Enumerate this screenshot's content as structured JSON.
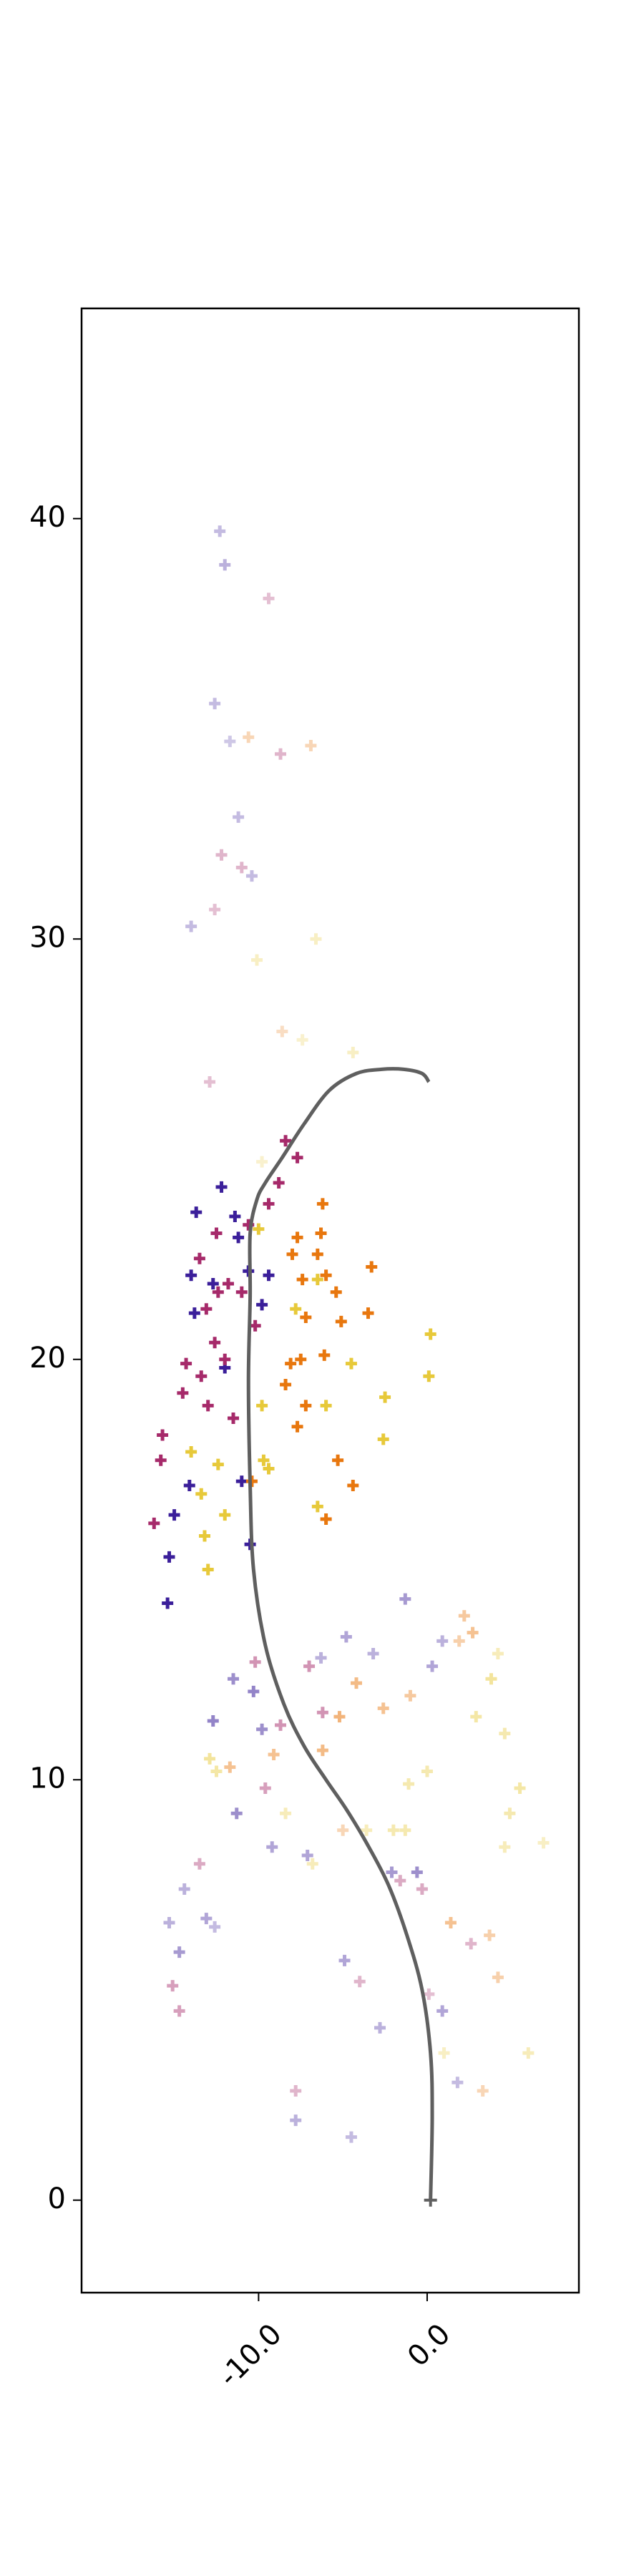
{
  "chart_data": {
    "type": "scatter",
    "title": "",
    "xlabel": "",
    "ylabel": "",
    "xlim": [
      -20.5,
      9.0
    ],
    "ylim": [
      -2.2,
      45.0
    ],
    "grid": false,
    "legend": "none",
    "x_ticks": [
      -10.0,
      0.0
    ],
    "x_tick_labels": [
      "-10.0",
      "0.0"
    ],
    "y_ticks": [
      0,
      10,
      20,
      30,
      40
    ],
    "y_tick_labels": [
      "0",
      "10",
      "20",
      "30",
      "40"
    ],
    "marker": "+",
    "colors": {
      "purple": "#3b1f9a",
      "magenta": "#a62a6a",
      "orange": "#e8770e",
      "yellow": "#e7c93a",
      "line": "#5f5f5f",
      "axis": "#000000"
    },
    "trajectory": {
      "x": [
        0.2,
        0.3,
        0.2,
        -0.3,
        -1.2,
        -2.3,
        -3.6,
        -4.8,
        -6.0,
        -7.3,
        -8.5,
        -9.6,
        -10.3,
        -10.5,
        -10.6,
        -10.5,
        -10.5,
        -10.1,
        -9.6,
        -8.6,
        -7.3,
        -5.8,
        -4.2,
        -2.7,
        -1.4,
        -0.3,
        0.1
      ],
      "y": [
        0.0,
        2.0,
        3.5,
        5.0,
        6.3,
        7.5,
        8.5,
        9.3,
        10.0,
        10.8,
        11.8,
        13.2,
        15.0,
        17.0,
        19.5,
        21.5,
        23.0,
        23.8,
        24.2,
        24.8,
        25.6,
        26.4,
        26.8,
        26.9,
        26.9,
        26.8,
        26.6
      ]
    },
    "series": [
      {
        "color": "purple",
        "points": [
          {
            "x": -11.4,
            "y": 23.4,
            "a": 1.0
          },
          {
            "x": -13.7,
            "y": 23.5,
            "a": 1.0
          },
          {
            "x": -14.0,
            "y": 22.0,
            "a": 1.0
          },
          {
            "x": -12.7,
            "y": 21.8,
            "a": 1.0
          },
          {
            "x": -11.2,
            "y": 22.9,
            "a": 1.0
          },
          {
            "x": -10.6,
            "y": 22.1,
            "a": 1.0
          },
          {
            "x": -13.8,
            "y": 21.1,
            "a": 1.0
          },
          {
            "x": -12.0,
            "y": 19.8,
            "a": 1.0
          },
          {
            "x": -11.0,
            "y": 17.1,
            "a": 1.0
          },
          {
            "x": -14.1,
            "y": 17.0,
            "a": 1.0
          },
          {
            "x": -10.5,
            "y": 15.6,
            "a": 1.0
          },
          {
            "x": -15.0,
            "y": 16.3,
            "a": 1.0
          },
          {
            "x": -15.3,
            "y": 15.3,
            "a": 1.0
          },
          {
            "x": -15.4,
            "y": 14.2,
            "a": 1.0
          },
          {
            "x": -12.2,
            "y": 24.1,
            "a": 1.0
          },
          {
            "x": -9.4,
            "y": 22.0,
            "a": 1.0
          },
          {
            "x": -9.8,
            "y": 21.3,
            "a": 1.0
          },
          {
            "x": -1.3,
            "y": 14.3,
            "a": 0.45
          },
          {
            "x": -4.8,
            "y": 13.4,
            "a": 0.4
          },
          {
            "x": -6.3,
            "y": 12.9,
            "a": 0.35
          },
          {
            "x": -10.3,
            "y": 12.1,
            "a": 0.55
          },
          {
            "x": -11.5,
            "y": 12.4,
            "a": 0.5
          },
          {
            "x": -12.7,
            "y": 11.4,
            "a": 0.55
          },
          {
            "x": -9.8,
            "y": 11.2,
            "a": 0.5
          },
          {
            "x": -11.3,
            "y": 9.2,
            "a": 0.5
          },
          {
            "x": -9.2,
            "y": 8.4,
            "a": 0.4
          },
          {
            "x": -7.1,
            "y": 8.2,
            "a": 0.4
          },
          {
            "x": -15.3,
            "y": 6.6,
            "a": 0.35
          },
          {
            "x": -14.4,
            "y": 7.4,
            "a": 0.35
          },
          {
            "x": -13.1,
            "y": 6.7,
            "a": 0.4
          },
          {
            "x": -14.7,
            "y": 5.9,
            "a": 0.45
          },
          {
            "x": -12.6,
            "y": 6.5,
            "a": 0.3
          },
          {
            "x": -2.1,
            "y": 7.8,
            "a": 0.45
          },
          {
            "x": -0.6,
            "y": 7.8,
            "a": 0.5
          },
          {
            "x": -4.9,
            "y": 5.7,
            "a": 0.4
          },
          {
            "x": -2.8,
            "y": 4.1,
            "a": 0.35
          },
          {
            "x": 0.9,
            "y": 4.5,
            "a": 0.4
          },
          {
            "x": 1.8,
            "y": 2.8,
            "a": 0.3
          },
          {
            "x": -7.8,
            "y": 1.9,
            "a": 0.35
          },
          {
            "x": -4.5,
            "y": 1.5,
            "a": 0.3
          },
          {
            "x": -12.3,
            "y": 39.7,
            "a": 0.3
          },
          {
            "x": -12.0,
            "y": 38.9,
            "a": 0.35
          },
          {
            "x": -12.6,
            "y": 35.6,
            "a": 0.3
          },
          {
            "x": -11.2,
            "y": 32.9,
            "a": 0.3
          },
          {
            "x": -10.4,
            "y": 31.5,
            "a": 0.3
          },
          {
            "x": -14.0,
            "y": 30.3,
            "a": 0.3
          },
          {
            "x": -11.7,
            "y": 34.7,
            "a": 0.25
          },
          {
            "x": 0.3,
            "y": 12.7,
            "a": 0.4
          },
          {
            "x": -3.2,
            "y": 13.0,
            "a": 0.35
          },
          {
            "x": 0.9,
            "y": 13.3,
            "a": 0.35
          }
        ]
      },
      {
        "color": "magenta",
        "points": [
          {
            "x": -8.4,
            "y": 25.2,
            "a": 1.0
          },
          {
            "x": -7.7,
            "y": 24.8,
            "a": 1.0
          },
          {
            "x": -12.5,
            "y": 23.0,
            "a": 1.0
          },
          {
            "x": -13.5,
            "y": 22.4,
            "a": 1.0
          },
          {
            "x": -11.8,
            "y": 21.8,
            "a": 1.0
          },
          {
            "x": -12.4,
            "y": 21.6,
            "a": 1.0
          },
          {
            "x": -11.0,
            "y": 21.6,
            "a": 1.0
          },
          {
            "x": -10.2,
            "y": 20.8,
            "a": 1.0
          },
          {
            "x": -13.1,
            "y": 21.2,
            "a": 1.0
          },
          {
            "x": -12.6,
            "y": 20.4,
            "a": 1.0
          },
          {
            "x": -14.3,
            "y": 19.9,
            "a": 1.0
          },
          {
            "x": -13.4,
            "y": 19.6,
            "a": 1.0
          },
          {
            "x": -11.5,
            "y": 18.6,
            "a": 1.0
          },
          {
            "x": -15.7,
            "y": 18.2,
            "a": 1.0
          },
          {
            "x": -15.8,
            "y": 17.6,
            "a": 1.0
          },
          {
            "x": -13.0,
            "y": 18.9,
            "a": 1.0
          },
          {
            "x": -16.2,
            "y": 16.1,
            "a": 1.0
          },
          {
            "x": -10.6,
            "y": 23.2,
            "a": 1.0
          },
          {
            "x": -9.4,
            "y": 23.7,
            "a": 1.0
          },
          {
            "x": -8.8,
            "y": 24.2,
            "a": 1.0
          },
          {
            "x": -14.5,
            "y": 19.2,
            "a": 1.0
          },
          {
            "x": -12.0,
            "y": 20.0,
            "a": 1.0
          },
          {
            "x": -7.0,
            "y": 12.7,
            "a": 0.5
          },
          {
            "x": -8.7,
            "y": 11.3,
            "a": 0.5
          },
          {
            "x": -6.2,
            "y": 11.6,
            "a": 0.5
          },
          {
            "x": -10.2,
            "y": 12.8,
            "a": 0.5
          },
          {
            "x": -13.5,
            "y": 8.0,
            "a": 0.4
          },
          {
            "x": -14.7,
            "y": 4.5,
            "a": 0.45
          },
          {
            "x": -15.1,
            "y": 5.1,
            "a": 0.45
          },
          {
            "x": -9.4,
            "y": 38.1,
            "a": 0.3
          },
          {
            "x": -8.7,
            "y": 34.4,
            "a": 0.35
          },
          {
            "x": -12.2,
            "y": 32.0,
            "a": 0.35
          },
          {
            "x": -11.0,
            "y": 31.7,
            "a": 0.35
          },
          {
            "x": -12.6,
            "y": 30.7,
            "a": 0.3
          },
          {
            "x": -12.9,
            "y": 26.6,
            "a": 0.3
          },
          {
            "x": -7.8,
            "y": 2.6,
            "a": 0.35
          },
          {
            "x": -1.6,
            "y": 7.6,
            "a": 0.4
          },
          {
            "x": -0.3,
            "y": 7.4,
            "a": 0.4
          },
          {
            "x": 2.6,
            "y": 6.1,
            "a": 0.35
          },
          {
            "x": -4.0,
            "y": 5.2,
            "a": 0.35
          },
          {
            "x": 0.1,
            "y": 4.9,
            "a": 0.3
          },
          {
            "x": -9.6,
            "y": 9.8,
            "a": 0.45
          }
        ]
      },
      {
        "color": "orange",
        "points": [
          {
            "x": -6.2,
            "y": 23.7,
            "a": 1.0
          },
          {
            "x": -6.3,
            "y": 23.0,
            "a": 1.0
          },
          {
            "x": -6.5,
            "y": 22.5,
            "a": 1.0
          },
          {
            "x": -7.7,
            "y": 22.9,
            "a": 1.0
          },
          {
            "x": -6.0,
            "y": 22.0,
            "a": 1.0
          },
          {
            "x": -5.4,
            "y": 21.6,
            "a": 1.0
          },
          {
            "x": -3.3,
            "y": 22.2,
            "a": 1.0
          },
          {
            "x": -7.2,
            "y": 21.0,
            "a": 1.0
          },
          {
            "x": -5.1,
            "y": 20.9,
            "a": 1.0
          },
          {
            "x": -3.5,
            "y": 21.1,
            "a": 1.0
          },
          {
            "x": -7.5,
            "y": 20.0,
            "a": 1.0
          },
          {
            "x": -8.1,
            "y": 19.9,
            "a": 1.0
          },
          {
            "x": -6.1,
            "y": 20.1,
            "a": 1.0
          },
          {
            "x": -8.4,
            "y": 19.4,
            "a": 1.0
          },
          {
            "x": -7.2,
            "y": 18.9,
            "a": 1.0
          },
          {
            "x": -7.7,
            "y": 18.4,
            "a": 1.0
          },
          {
            "x": -5.3,
            "y": 17.6,
            "a": 1.0
          },
          {
            "x": -10.4,
            "y": 17.1,
            "a": 1.0
          },
          {
            "x": -6.0,
            "y": 16.2,
            "a": 1.0
          },
          {
            "x": -4.4,
            "y": 17.0,
            "a": 1.0
          },
          {
            "x": -8.0,
            "y": 22.5,
            "a": 1.0
          },
          {
            "x": -7.4,
            "y": 21.9,
            "a": 1.0
          },
          {
            "x": -5.2,
            "y": 11.5,
            "a": 0.55
          },
          {
            "x": -4.2,
            "y": 12.3,
            "a": 0.5
          },
          {
            "x": -6.2,
            "y": 10.7,
            "a": 0.5
          },
          {
            "x": -2.6,
            "y": 11.7,
            "a": 0.45
          },
          {
            "x": -1.0,
            "y": 12.0,
            "a": 0.4
          },
          {
            "x": 1.9,
            "y": 13.3,
            "a": 0.35
          },
          {
            "x": 2.7,
            "y": 13.5,
            "a": 0.45
          },
          {
            "x": 2.2,
            "y": 13.9,
            "a": 0.4
          },
          {
            "x": 1.4,
            "y": 6.6,
            "a": 0.45
          },
          {
            "x": 3.7,
            "y": 6.3,
            "a": 0.35
          },
          {
            "x": 4.2,
            "y": 5.3,
            "a": 0.35
          },
          {
            "x": -10.6,
            "y": 34.8,
            "a": 0.3
          },
          {
            "x": -6.9,
            "y": 34.6,
            "a": 0.3
          },
          {
            "x": -8.6,
            "y": 27.8,
            "a": 0.25
          },
          {
            "x": -5.0,
            "y": 8.8,
            "a": 0.3
          },
          {
            "x": 3.3,
            "y": 2.6,
            "a": 0.3
          },
          {
            "x": -9.1,
            "y": 10.6,
            "a": 0.45
          },
          {
            "x": -11.7,
            "y": 10.3,
            "a": 0.45
          }
        ]
      },
      {
        "color": "yellow",
        "points": [
          {
            "x": 0.2,
            "y": 20.6,
            "a": 1.0
          },
          {
            "x": 0.1,
            "y": 19.6,
            "a": 1.0
          },
          {
            "x": -2.5,
            "y": 19.1,
            "a": 1.0
          },
          {
            "x": -2.6,
            "y": 18.1,
            "a": 1.0
          },
          {
            "x": -6.0,
            "y": 18.9,
            "a": 1.0
          },
          {
            "x": -4.5,
            "y": 19.9,
            "a": 1.0
          },
          {
            "x": -9.8,
            "y": 18.9,
            "a": 1.0
          },
          {
            "x": -12.4,
            "y": 17.5,
            "a": 1.0
          },
          {
            "x": -9.7,
            "y": 17.6,
            "a": 1.0
          },
          {
            "x": -9.4,
            "y": 17.4,
            "a": 1.0
          },
          {
            "x": -14.0,
            "y": 17.8,
            "a": 1.0
          },
          {
            "x": -13.4,
            "y": 16.8,
            "a": 1.0
          },
          {
            "x": -12.0,
            "y": 16.3,
            "a": 1.0
          },
          {
            "x": -13.2,
            "y": 15.8,
            "a": 1.0
          },
          {
            "x": -13.0,
            "y": 15.0,
            "a": 1.0
          },
          {
            "x": -6.5,
            "y": 16.5,
            "a": 1.0
          },
          {
            "x": -7.8,
            "y": 21.2,
            "a": 1.0
          },
          {
            "x": -6.5,
            "y": 21.9,
            "a": 1.0
          },
          {
            "x": -10.0,
            "y": 23.1,
            "a": 1.0
          },
          {
            "x": 3.8,
            "y": 12.4,
            "a": 0.5
          },
          {
            "x": 2.9,
            "y": 11.5,
            "a": 0.45
          },
          {
            "x": 4.6,
            "y": 11.1,
            "a": 0.4
          },
          {
            "x": 5.5,
            "y": 9.8,
            "a": 0.45
          },
          {
            "x": 4.9,
            "y": 9.2,
            "a": 0.4
          },
          {
            "x": 4.6,
            "y": 8.4,
            "a": 0.35
          },
          {
            "x": 6.9,
            "y": 8.5,
            "a": 0.3
          },
          {
            "x": 0.0,
            "y": 10.2,
            "a": 0.4
          },
          {
            "x": -1.1,
            "y": 9.9,
            "a": 0.4
          },
          {
            "x": -2.0,
            "y": 8.8,
            "a": 0.4
          },
          {
            "x": -1.3,
            "y": 8.8,
            "a": 0.4
          },
          {
            "x": -3.6,
            "y": 8.8,
            "a": 0.35
          },
          {
            "x": -8.4,
            "y": 9.2,
            "a": 0.35
          },
          {
            "x": -12.9,
            "y": 10.5,
            "a": 0.5
          },
          {
            "x": -12.5,
            "y": 10.2,
            "a": 0.45
          },
          {
            "x": 6.0,
            "y": 3.5,
            "a": 0.35
          },
          {
            "x": 1.0,
            "y": 3.5,
            "a": 0.3
          },
          {
            "x": -10.1,
            "y": 29.5,
            "a": 0.3
          },
          {
            "x": -6.6,
            "y": 30.0,
            "a": 0.3
          },
          {
            "x": -4.4,
            "y": 27.3,
            "a": 0.3
          },
          {
            "x": -7.4,
            "y": 27.6,
            "a": 0.25
          },
          {
            "x": -9.8,
            "y": 24.7,
            "a": 0.25
          },
          {
            "x": -6.8,
            "y": 8.0,
            "a": 0.35
          },
          {
            "x": 4.2,
            "y": 13.0,
            "a": 0.35
          }
        ]
      }
    ]
  }
}
